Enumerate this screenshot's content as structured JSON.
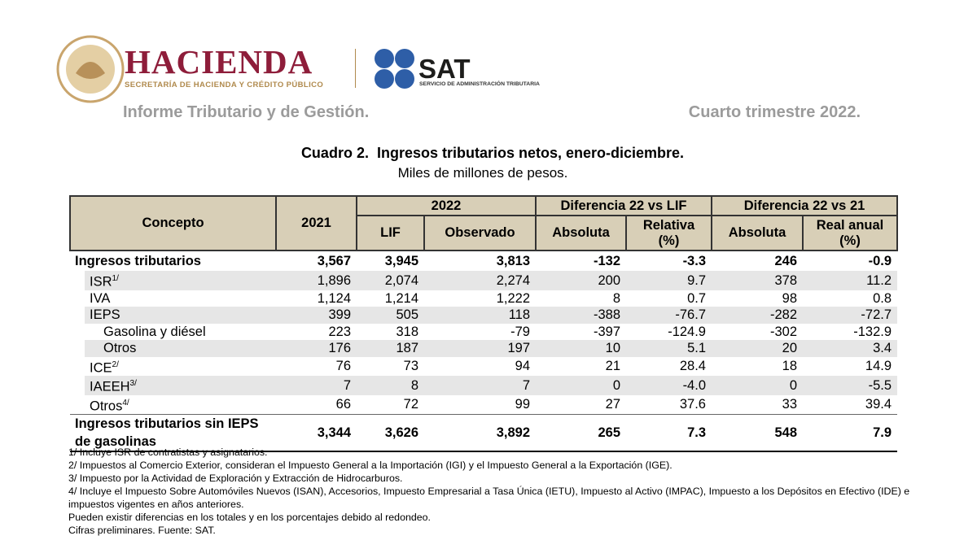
{
  "header": {
    "brand1": "HACIENDA",
    "brand1_sub": "SECRETARÍA DE HACIENDA Y CRÉDITO PÚBLICO",
    "brand2": "SAT",
    "brand2_sub": "SERVICIO DE ADMINISTRACIÓN TRIBUTARIA",
    "report": "Informe Tributario y de Gestión.",
    "period": "Cuarto trimestre 2022."
  },
  "title": "Cuadro 2.  Ingresos tributarios netos, enero-diciembre.",
  "subtitle": "Miles de millones de pesos.",
  "table": {
    "columns": {
      "concept": "Concepto",
      "y2021": "2021",
      "y2022": "2022",
      "lif": "LIF",
      "observed": "Observado",
      "diff_lif": "Diferencia 22 vs LIF",
      "abs1": "Absoluta",
      "rel": "Relativa",
      "rel_unit": "(%)",
      "diff_21": "Diferencia 22 vs 21",
      "abs2": "Absoluta",
      "real": "Real anual",
      "real_unit": "(%)"
    },
    "rows": [
      {
        "label": "Ingresos tributarios",
        "values": [
          "3,567",
          "3,945",
          "3,813",
          "-132",
          "-3.3",
          "246",
          "-0.9"
        ],
        "children": [
          {
            "label": "ISR",
            "sup": "1/",
            "values": [
              "1,896",
              "2,074",
              "2,274",
              "200",
              "9.7",
              "378",
              "11.2"
            ]
          },
          {
            "label": "IVA",
            "values": [
              "1,124",
              "1,214",
              "1,222",
              "8",
              "0.7",
              "98",
              "0.8"
            ]
          },
          {
            "label": "IEPS",
            "values": [
              "399",
              "505",
              "118",
              "-388",
              "-76.7",
              "-282",
              "-72.7"
            ],
            "children": [
              {
                "label": "Gasolina y diésel",
                "values": [
                  "223",
                  "318",
                  "-79",
                  "-397",
                  "-124.9",
                  "-302",
                  "-132.9"
                ]
              },
              {
                "label": "Otros",
                "values": [
                  "176",
                  "187",
                  "197",
                  "10",
                  "5.1",
                  "20",
                  "3.4"
                ]
              }
            ]
          },
          {
            "label": "ICE",
            "sup": "2/",
            "values": [
              "76",
              "73",
              "94",
              "21",
              "28.4",
              "18",
              "14.9"
            ]
          },
          {
            "label": "IAEEH",
            "sup": "3/",
            "values": [
              "7",
              "8",
              "7",
              "0",
              "-4.0",
              "0",
              "-5.5"
            ]
          },
          {
            "label": "Otros",
            "sup": "4/",
            "values": [
              "66",
              "72",
              "99",
              "27",
              "37.6",
              "33",
              "39.4"
            ]
          }
        ]
      },
      {
        "label": "Ingresos tributarios sin IEPS de gasolinas",
        "values": [
          "3,344",
          "3,626",
          "3,892",
          "265",
          "7.3",
          "548",
          "7.9"
        ]
      }
    ]
  },
  "notes": [
    "1/ Incluye ISR de contratistas y asignatarios.",
    "2/ Impuestos al Comercio Exterior, consideran el Impuesto General a la Importación (IGI) y el Impuesto General a la Exportación (IGE).",
    "3/ Impuesto por la Actividad de Exploración y Extracción de Hidrocarburos.",
    "4/ Incluye el Impuesto Sobre Automóviles Nuevos (ISAN), Accesorios, Impuesto Empresarial a Tasa Única (IETU), Impuesto al Activo (IMPAC), Impuesto a los Depósitos en Efectivo (IDE) e impuestos vigentes en años anteriores.",
    "Pueden existir diferencias en los totales y en los porcentajes debido al redondeo.",
    "Cifras preliminares. Fuente: SAT."
  ]
}
